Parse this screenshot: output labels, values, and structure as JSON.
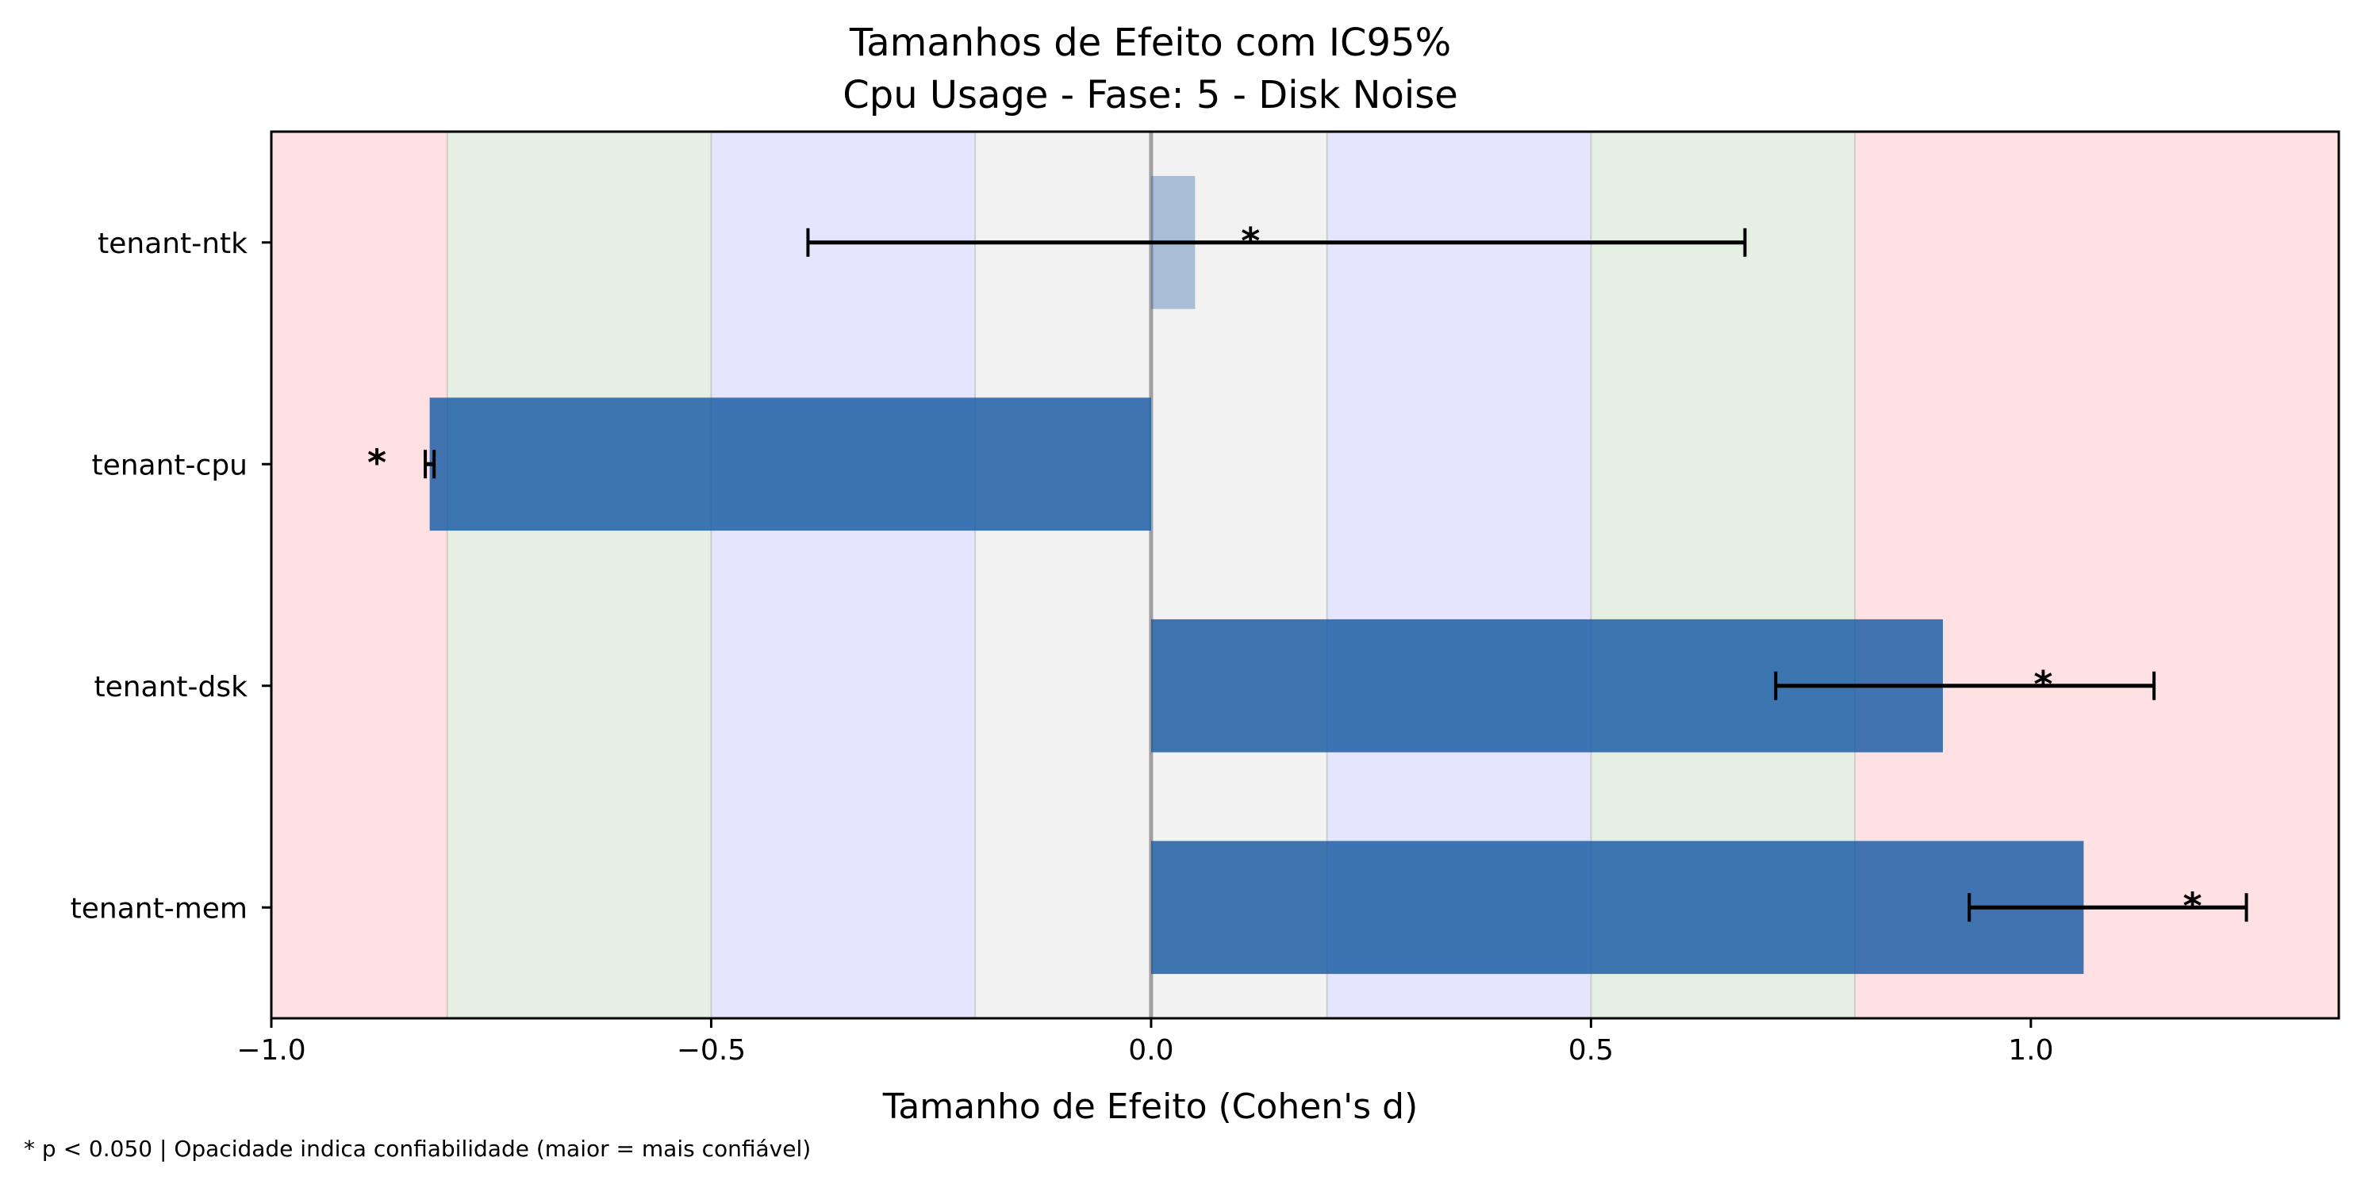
{
  "chart_data": {
    "type": "bar",
    "orientation": "horizontal",
    "title_line1": "Tamanhos de Efeito com IC95%",
    "title_line2": "Cpu Usage - Fase: 5 - Disk Noise",
    "xlabel": "Tamanho de Efeito (Cohen's d)",
    "ylabel": "",
    "xlim": [
      -1.0,
      1.35
    ],
    "xticks": [
      -1.0,
      -0.5,
      0.0,
      0.5,
      1.0
    ],
    "xtick_labels": [
      "−1.0",
      "−0.5",
      "0.0",
      "0.5",
      "1.0"
    ],
    "categories": [
      "tenant-ntk",
      "tenant-cpu",
      "tenant-dsk",
      "tenant-mem"
    ],
    "values": [
      0.05,
      -0.82,
      0.9,
      1.06
    ],
    "ci_lower": [
      -0.39,
      -0.825,
      0.71,
      0.93
    ],
    "ci_upper": [
      0.675,
      -0.815,
      1.14,
      1.245
    ],
    "significance_marker": [
      "*",
      "*",
      "*",
      "*"
    ],
    "bar_opacity": [
      0.35,
      0.85,
      0.85,
      0.85
    ],
    "bar_color": "#1f5fa6",
    "effect_bands": [
      {
        "from": -1.0,
        "to": -0.8,
        "color": "#ffe0e3"
      },
      {
        "from": -0.8,
        "to": -0.5,
        "color": "#e5f0e3"
      },
      {
        "from": -0.5,
        "to": -0.2,
        "color": "#e5e5ff"
      },
      {
        "from": -0.2,
        "to": 0.2,
        "color": "#f2f2f2"
      },
      {
        "from": 0.2,
        "to": 0.5,
        "color": "#e5e5ff"
      },
      {
        "from": 0.5,
        "to": 0.8,
        "color": "#e5f0e3"
      },
      {
        "from": 0.8,
        "to": 1.35,
        "color": "#ffe0e3"
      }
    ],
    "footnote": "* p < 0.050  |  Opacidade indica confiabilidade (maior = mais confiável)"
  }
}
